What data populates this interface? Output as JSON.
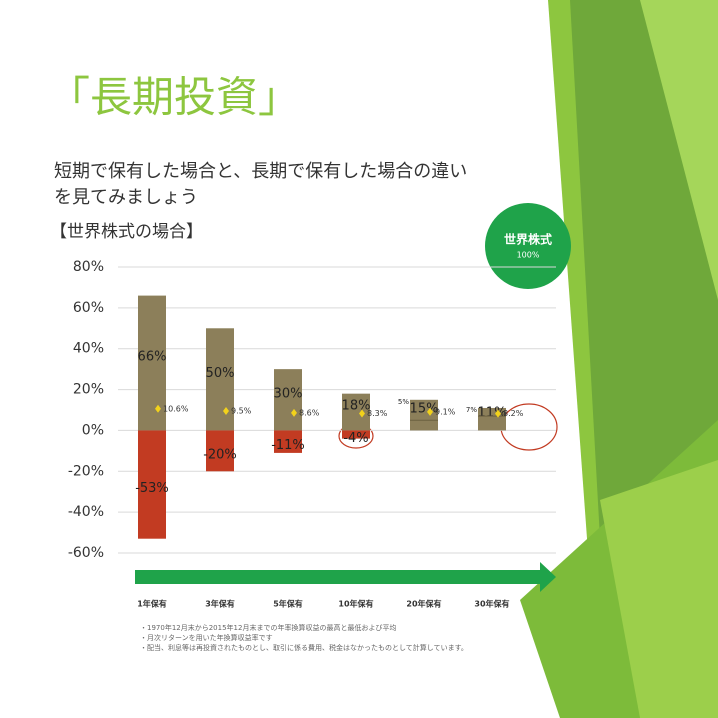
{
  "slide": {
    "title": "「長期投資」",
    "subtitle": [
      "短期で保有した場合と、長期で保有した場合の違い",
      "を見てみましょう"
    ],
    "badge": {
      "label": "世界株式",
      "weight": "100%"
    },
    "notes": [
      "・1970年12月末から2015年12月末までの年率換算収益の最高と最低および平均",
      "・月次リターンを用いた年換算収益率です",
      "・配当、利息等は再投資されたものとし、取引に係る費用、税金はなかったものとして計算しています。"
    ]
  },
  "chart_data": {
    "type": "bar",
    "title": "【世界株式の場合】",
    "categories": [
      "1年保有",
      "3年保有",
      "5年保有",
      "10年保有",
      "20年保有",
      "30年保有"
    ],
    "series": [
      {
        "color": "#8c7f5a",
        "values": [
          66,
          50,
          30,
          18,
          15,
          11
        ],
        "value_labels": [
          "66%",
          "50%",
          "30%",
          "18%",
          "15%",
          "11%"
        ]
      },
      {
        "color": "#c23b22",
        "values": [
          -53,
          -20,
          -11,
          -4,
          5,
          7
        ],
        "value_labels": [
          "-53%",
          "-20%",
          "-11%",
          "-4%",
          "5%",
          "7%"
        ]
      },
      {
        "color": "#f2d21b",
        "values": [
          10.6,
          9.5,
          8.6,
          8.3,
          9.1,
          8.2
        ],
        "value_labels": [
          "10.6%",
          "9.5%",
          "8.6%",
          "8.3%",
          "9.1%",
          "8.2%"
        ]
      }
    ],
    "ylim": [
      -60,
      80
    ],
    "yticks": [
      {
        "value": 80,
        "label": "80%"
      },
      {
        "value": 60,
        "label": "60%"
      },
      {
        "value": 40,
        "label": "40%"
      },
      {
        "value": 20,
        "label": "20%"
      },
      {
        "value": 0,
        "label": "0%"
      },
      {
        "value": -20,
        "label": "-20%"
      },
      {
        "value": -40,
        "label": "-40%"
      },
      {
        "value": -60,
        "label": "-60%"
      }
    ],
    "grid": true
  }
}
